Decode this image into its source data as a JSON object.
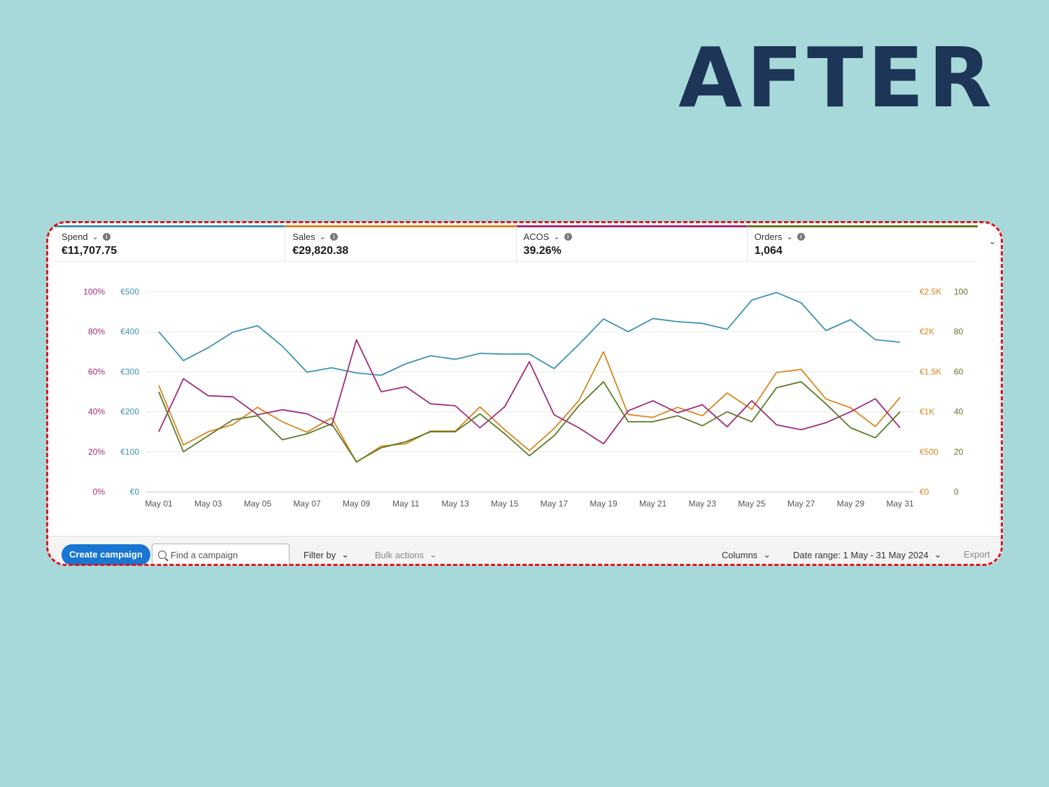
{
  "headline": "AFTER",
  "metrics": [
    {
      "label": "Spend",
      "value": "€11,707.75",
      "color": "#3d93b2"
    },
    {
      "label": "Sales",
      "value": "€29,820.38",
      "color": "#d9861f"
    },
    {
      "label": "ACOS",
      "value": "39.26%",
      "color": "#a02a7c"
    },
    {
      "label": "Orders",
      "value": "1,064",
      "color": "#5c7a24"
    }
  ],
  "toolbar": {
    "create_label": "Create campaign",
    "search_placeholder": "Find a campaign",
    "filter_label": "Filter by",
    "bulk_label": "Bulk actions",
    "columns_label": "Columns",
    "date_range_label": "Date range: 1 May - 31 May 2024",
    "export_label": "Export"
  },
  "chart_data": {
    "type": "line",
    "x": [
      "May 01",
      "May 02",
      "May 03",
      "May 04",
      "May 05",
      "May 06",
      "May 07",
      "May 08",
      "May 09",
      "May 10",
      "May 11",
      "May 12",
      "May 13",
      "May 14",
      "May 15",
      "May 16",
      "May 17",
      "May 18",
      "May 19",
      "May 20",
      "May 21",
      "May 22",
      "May 23",
      "May 24",
      "May 25",
      "May 26",
      "May 27",
      "May 28",
      "May 29",
      "May 30",
      "May 31"
    ],
    "x_tick_labels": [
      "May 01",
      "May 03",
      "May 05",
      "May 07",
      "May 09",
      "May 11",
      "May 13",
      "May 15",
      "May 17",
      "May 19",
      "May 21",
      "May 23",
      "May 25",
      "May 27",
      "May 29",
      "May 31"
    ],
    "axes": {
      "acos": {
        "ticks": [
          "100%",
          "80%",
          "60%",
          "40%",
          "20%",
          "0%"
        ],
        "range": [
          0,
          100
        ],
        "color": "#a02a7c"
      },
      "spend": {
        "ticks": [
          "€500",
          "€400",
          "€300",
          "€200",
          "€100",
          "€0"
        ],
        "range": [
          0,
          500
        ],
        "color": "#3d93b2"
      },
      "sales": {
        "ticks": [
          "€2.5K",
          "€2K",
          "€1.5K",
          "€1K",
          "€500",
          "€0"
        ],
        "range": [
          0,
          2500
        ],
        "color": "#d9861f"
      },
      "orders": {
        "ticks": [
          "100",
          "80",
          "60",
          "40",
          "20",
          "0"
        ],
        "range": [
          0,
          100
        ],
        "color": "#5c7a24"
      }
    },
    "series": [
      {
        "name": "Spend",
        "axis": "spend",
        "color": "#3d93b2",
        "values": [
          400,
          328,
          360,
          399,
          415,
          364,
          299,
          310,
          297,
          291,
          320,
          340,
          331,
          346,
          344,
          344,
          308,
          368,
          432,
          400,
          433,
          425,
          421,
          406,
          479,
          498,
          472,
          403,
          430,
          380,
          374
        ]
      },
      {
        "name": "Sales",
        "axis": "sales",
        "color": "#d9861f",
        "values": [
          1330,
          585,
          750,
          840,
          1055,
          875,
          745,
          925,
          370,
          570,
          600,
          760,
          758,
          1060,
          775,
          515,
          790,
          1140,
          1750,
          965,
          930,
          1055,
          950,
          1235,
          1030,
          1490,
          1530,
          1160,
          1050,
          815,
          1180
        ]
      },
      {
        "name": "ACOS",
        "axis": "acos",
        "color": "#a02a7c",
        "values": [
          30,
          56.5,
          48,
          47.5,
          38.5,
          41,
          39,
          33,
          76,
          50,
          52.5,
          44,
          43,
          32,
          42.5,
          65,
          38.5,
          32,
          24,
          40.5,
          45.5,
          39.5,
          43.5,
          32.5,
          45.5,
          33.5,
          31,
          34.5,
          40,
          46.5,
          32
        ]
      },
      {
        "name": "Orders",
        "axis": "orders",
        "color": "#5c7a24",
        "values": [
          50,
          20,
          28,
          36,
          38,
          26,
          29,
          34,
          15,
          22,
          25,
          30,
          30,
          39,
          29,
          18,
          28,
          43,
          55,
          35,
          35,
          38,
          33,
          40,
          35,
          52,
          55,
          44,
          32,
          27,
          40
        ]
      }
    ],
    "grid": true
  }
}
